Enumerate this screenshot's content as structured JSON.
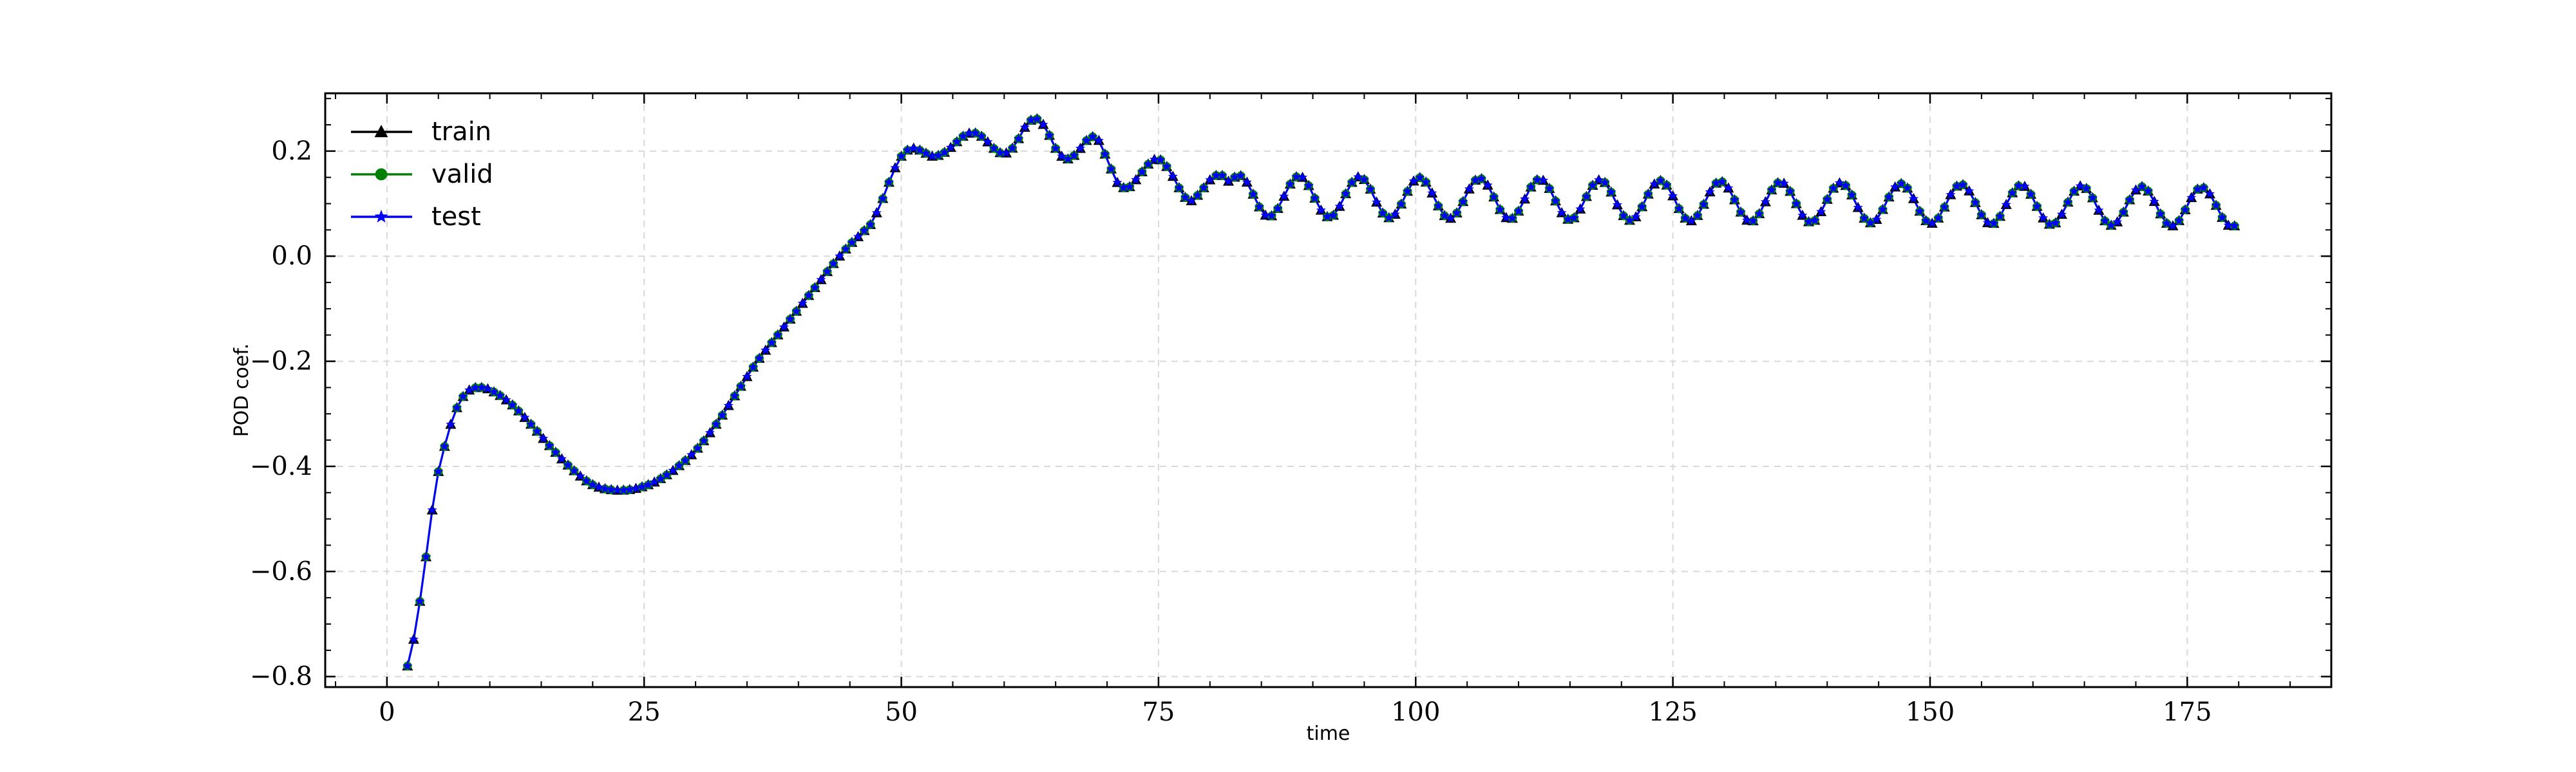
{
  "chart_data": {
    "type": "line",
    "title": "",
    "xlabel": "time",
    "ylabel": "POD coef.",
    "xlim": [
      -6,
      189
    ],
    "ylim": [
      -0.82,
      0.31
    ],
    "xticks": [
      0,
      25,
      50,
      75,
      100,
      125,
      150,
      175
    ],
    "yticks": [
      -0.8,
      -0.6,
      -0.4,
      -0.2,
      0.0,
      0.2
    ],
    "xtick_labels": [
      "0",
      "25",
      "50",
      "75",
      "100",
      "125",
      "150",
      "175"
    ],
    "ytick_labels": [
      "−0.8",
      "−0.6",
      "−0.4",
      "−0.2",
      "0.0",
      "0.2"
    ],
    "grid": true,
    "legend_position": "top-left",
    "x_start": 2.0,
    "x_end": 180.0,
    "x_step": 0.6,
    "curve_keypoints": [
      [
        2.0,
        -0.78
      ],
      [
        2.5,
        -0.74
      ],
      [
        3.0,
        -0.68
      ],
      [
        3.5,
        -0.62
      ],
      [
        4.0,
        -0.54
      ],
      [
        4.5,
        -0.47
      ],
      [
        5.0,
        -0.41
      ],
      [
        5.5,
        -0.37
      ],
      [
        6.0,
        -0.33
      ],
      [
        7.0,
        -0.28
      ],
      [
        8.0,
        -0.255
      ],
      [
        9.0,
        -0.25
      ],
      [
        10.0,
        -0.255
      ],
      [
        12.0,
        -0.28
      ],
      [
        14.0,
        -0.32
      ],
      [
        16.0,
        -0.365
      ],
      [
        18.0,
        -0.405
      ],
      [
        20.0,
        -0.435
      ],
      [
        22.0,
        -0.445
      ],
      [
        24.0,
        -0.443
      ],
      [
        26.0,
        -0.43
      ],
      [
        28.0,
        -0.405
      ],
      [
        30.0,
        -0.37
      ],
      [
        32.0,
        -0.32
      ],
      [
        34.0,
        -0.26
      ],
      [
        36.0,
        -0.2
      ],
      [
        38.0,
        -0.15
      ],
      [
        40.0,
        -0.1
      ],
      [
        42.0,
        -0.05
      ],
      [
        44.0,
        0.0
      ],
      [
        46.0,
        0.04
      ],
      [
        47.0,
        0.06
      ],
      [
        48.0,
        0.1
      ],
      [
        49.0,
        0.15
      ],
      [
        50.0,
        0.19
      ],
      [
        51.0,
        0.205
      ],
      [
        52.0,
        0.2
      ],
      [
        53.0,
        0.19
      ],
      [
        54.0,
        0.195
      ],
      [
        55.0,
        0.21
      ],
      [
        56.0,
        0.228
      ],
      [
        57.0,
        0.235
      ],
      [
        58.0,
        0.225
      ],
      [
        59.0,
        0.205
      ],
      [
        60.0,
        0.195
      ],
      [
        61.0,
        0.21
      ],
      [
        62.0,
        0.245
      ],
      [
        63.0,
        0.262
      ],
      [
        64.0,
        0.245
      ],
      [
        65.0,
        0.205
      ],
      [
        66.0,
        0.185
      ],
      [
        67.0,
        0.195
      ],
      [
        68.0,
        0.22
      ],
      [
        69.0,
        0.225
      ],
      [
        70.0,
        0.185
      ],
      [
        71.0,
        0.14
      ],
      [
        72.0,
        0.13
      ],
      [
        73.0,
        0.15
      ],
      [
        74.0,
        0.175
      ],
      [
        75.0,
        0.185
      ],
      [
        76.0,
        0.165
      ],
      [
        77.0,
        0.13
      ],
      [
        78.0,
        0.105
      ],
      [
        79.0,
        0.12
      ],
      [
        80.0,
        0.145
      ],
      [
        81.0,
        0.155
      ],
      [
        82.0,
        0.14
      ]
    ],
    "oscillation": {
      "start_x": 82.0,
      "center_start": 0.115,
      "center_end": 0.093,
      "amplitude_start": 0.039,
      "amplitude_end": 0.037,
      "period": 5.85
    },
    "series": [
      {
        "name": "train",
        "color": "#000000",
        "marker": "triangle"
      },
      {
        "name": "valid",
        "color": "#008000",
        "marker": "circle"
      },
      {
        "name": "test",
        "color": "#0000ff",
        "marker": "star"
      }
    ]
  }
}
